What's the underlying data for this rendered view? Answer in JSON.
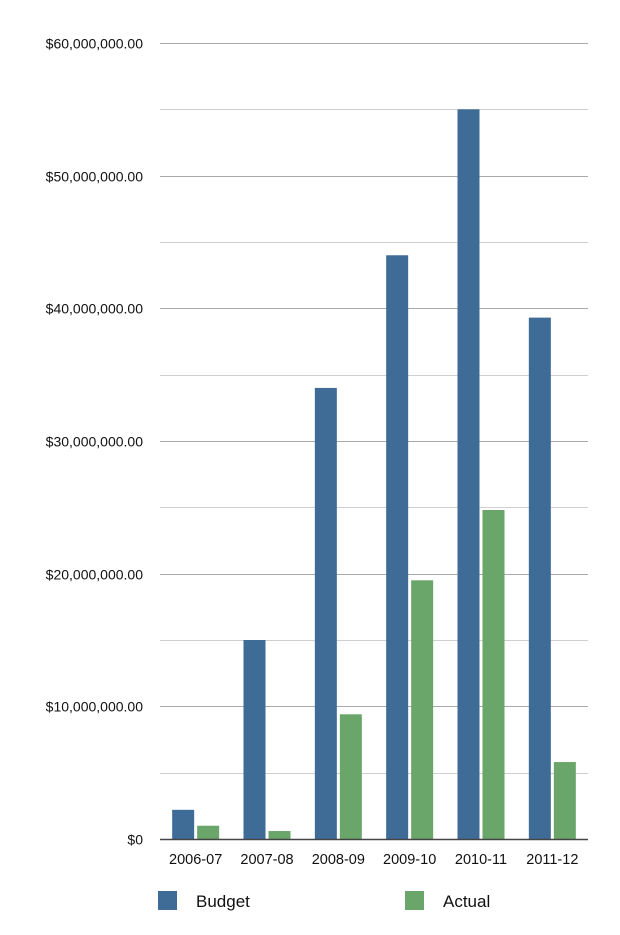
{
  "chart_data": {
    "type": "bar",
    "categories": [
      "2006-07",
      "2007-08",
      "2008-09",
      "2009-10",
      "2010-11",
      "2011-12"
    ],
    "series": [
      {
        "name": "Budget",
        "color": "#3f6b97",
        "values": [
          2200000,
          15000000,
          34000000,
          44000000,
          55000000,
          39300000
        ]
      },
      {
        "name": "Actual",
        "color": "#6aa56a",
        "values": [
          1000000,
          600000,
          9400000,
          19500000,
          24800000,
          5800000
        ]
      }
    ],
    "y_ticks": [
      {
        "value": 0,
        "label": "$0"
      },
      {
        "value": 10000000,
        "label": "$10,000,000.00"
      },
      {
        "value": 20000000,
        "label": "$20,000,000.00"
      },
      {
        "value": 30000000,
        "label": "$30,000,000.00"
      },
      {
        "value": 40000000,
        "label": "$40,000,000.00"
      },
      {
        "value": 50000000,
        "label": "$50,000,000.00"
      },
      {
        "value": 60000000,
        "label": "$60,000,000.00"
      }
    ],
    "minor_gridlines": [
      5000000,
      15000000,
      25000000,
      35000000,
      45000000,
      55000000
    ],
    "ylim": [
      0,
      60000000
    ],
    "grid": true,
    "legend_position": "bottom",
    "title": "",
    "xlabel": "",
    "ylabel": ""
  }
}
